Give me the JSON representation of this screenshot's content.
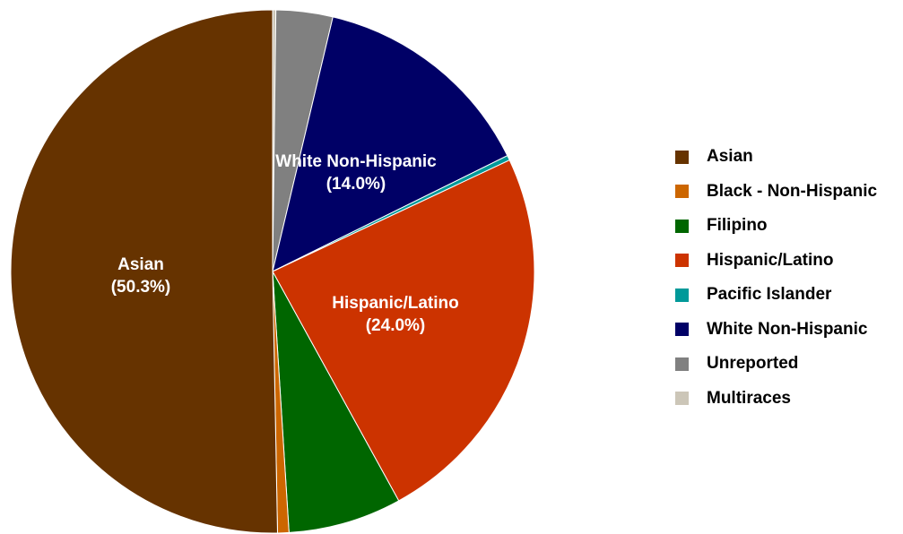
{
  "chart_data": {
    "type": "pie",
    "series": [
      {
        "name": "Asian",
        "value": 50.3,
        "color": "#663300",
        "label": "Asian",
        "pct_label": "(50.3%)"
      },
      {
        "name": "Black - Non-Hispanic",
        "value": 0.7,
        "color": "#cc6600",
        "label": "",
        "pct_label": ""
      },
      {
        "name": "Filipino",
        "value": 7.0,
        "color": "#006600",
        "label": "",
        "pct_label": ""
      },
      {
        "name": "Hispanic/Latino",
        "value": 24.0,
        "color": "#cc3300",
        "label": "Hispanic/Latino",
        "pct_label": "(24.0%)"
      },
      {
        "name": "Pacific Islander",
        "value": 0.3,
        "color": "#009999",
        "label": "",
        "pct_label": ""
      },
      {
        "name": "White Non-Hispanic",
        "value": 14.0,
        "color": "#000066",
        "label": "White Non-Hispanic",
        "pct_label": "(14.0%)"
      },
      {
        "name": "Unreported",
        "value": 3.5,
        "color": "#808080",
        "label": "",
        "pct_label": ""
      },
      {
        "name": "Multiraces",
        "value": 0.2,
        "color": "#ccc6b8",
        "label": "",
        "pct_label": ""
      }
    ],
    "legend_position": "right"
  }
}
